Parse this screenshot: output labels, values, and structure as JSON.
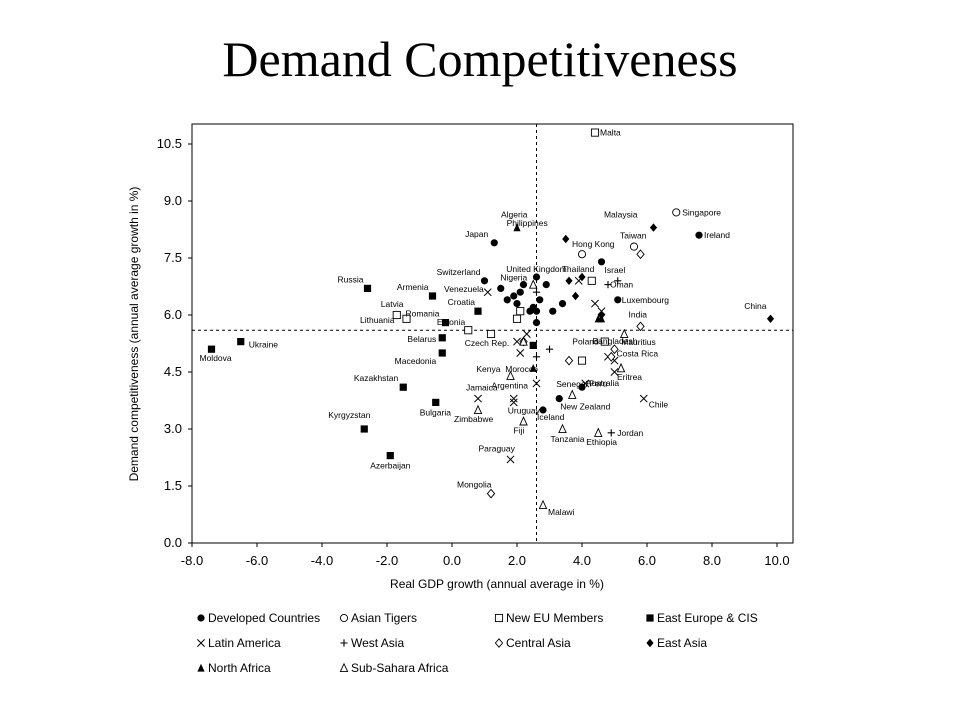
{
  "slide": {
    "title": "Demand Competitiveness"
  },
  "chart_data": {
    "type": "scatter",
    "xlabel": "Real GDP growth (annual average in %)",
    "ylabel": "Demand competitiveness (annual average growth in %)",
    "xlim": [
      -8.0,
      10.0
    ],
    "ylim": [
      0.0,
      11.0
    ],
    "x_ticks": [
      "-8.0",
      "-6.0",
      "-4.0",
      "-2.0",
      "0.0",
      "2.0",
      "4.0",
      "6.0",
      "8.0",
      "10.0"
    ],
    "y_ticks": [
      "0.0",
      "1.5",
      "3.0",
      "4.5",
      "6.0",
      "7.5",
      "9.0",
      "10.5"
    ],
    "grid": false,
    "reference_lines": {
      "x": 2.6,
      "y": 5.6
    },
    "legend_position": "bottom",
    "series": [
      {
        "name": "Developed Countries",
        "marker": "filled-circle",
        "points": [
          {
            "label": "Japan",
            "x": 1.3,
            "y": 7.9
          },
          {
            "label": "Switzerland",
            "x": 1.0,
            "y": 6.9
          },
          {
            "label": "Ireland",
            "x": 7.6,
            "y": 8.1
          },
          {
            "label": "Israel",
            "x": 4.6,
            "y": 7.4
          },
          {
            "label": "Luxembourg",
            "x": 5.1,
            "y": 6.4
          },
          {
            "label": "Australia",
            "x": 4.0,
            "y": 4.1
          },
          {
            "label": "New Zealand",
            "x": 3.3,
            "y": 3.8
          },
          {
            "label": "Iceland",
            "x": 2.8,
            "y": 3.5
          },
          {
            "label": "United Kingdom",
            "x": 2.6,
            "y": 7.0
          },
          {
            "label": "",
            "x": 1.5,
            "y": 6.7
          },
          {
            "label": "",
            "x": 1.7,
            "y": 6.4
          },
          {
            "label": "",
            "x": 1.9,
            "y": 6.5
          },
          {
            "label": "",
            "x": 2.0,
            "y": 6.3
          },
          {
            "label": "",
            "x": 2.1,
            "y": 6.6
          },
          {
            "label": "",
            "x": 2.2,
            "y": 6.8
          },
          {
            "label": "",
            "x": 2.4,
            "y": 6.1
          },
          {
            "label": "",
            "x": 2.5,
            "y": 6.2
          },
          {
            "label": "",
            "x": 2.7,
            "y": 6.4
          },
          {
            "label": "",
            "x": 2.6,
            "y": 6.1
          },
          {
            "label": "",
            "x": 2.9,
            "y": 6.8
          },
          {
            "label": "",
            "x": 3.1,
            "y": 6.1
          },
          {
            "label": "",
            "x": 2.6,
            "y": 5.8
          },
          {
            "label": "",
            "x": 3.4,
            "y": 6.3
          }
        ]
      },
      {
        "name": "Asian Tigers",
        "marker": "open-circle",
        "points": [
          {
            "label": "Singapore",
            "x": 6.9,
            "y": 8.7
          },
          {
            "label": "Hong Kong",
            "x": 4.0,
            "y": 7.6
          },
          {
            "label": "Taiwan",
            "x": 5.6,
            "y": 7.8
          }
        ]
      },
      {
        "name": "New EU Members",
        "marker": "open-square",
        "points": [
          {
            "label": "Malta",
            "x": 4.4,
            "y": 10.8
          },
          {
            "label": "Latvia",
            "x": -1.7,
            "y": 6.0
          },
          {
            "label": "Lithuania",
            "x": -1.4,
            "y": 5.9
          },
          {
            "label": "Estonia",
            "x": 0.5,
            "y": 5.6
          },
          {
            "label": "Czech Rep.",
            "x": 1.2,
            "y": 5.5
          },
          {
            "label": "Poland",
            "x": 4.7,
            "y": 5.3
          },
          {
            "label": "",
            "x": 2.0,
            "y": 5.9
          },
          {
            "label": "",
            "x": 2.1,
            "y": 6.1
          },
          {
            "label": "",
            "x": 4.0,
            "y": 4.8
          },
          {
            "label": "",
            "x": 4.3,
            "y": 6.9
          }
        ]
      },
      {
        "name": "East Europe & CIS",
        "marker": "filled-square",
        "points": [
          {
            "label": "Russia",
            "x": -2.6,
            "y": 6.7
          },
          {
            "label": "Armenia",
            "x": -0.6,
            "y": 6.5
          },
          {
            "label": "Croatia",
            "x": 0.8,
            "y": 6.1
          },
          {
            "label": "Romania",
            "x": -0.2,
            "y": 5.8
          },
          {
            "label": "Belarus",
            "x": -0.3,
            "y": 5.4
          },
          {
            "label": "Macedonia",
            "x": -0.3,
            "y": 5.0
          },
          {
            "label": "Ukraine",
            "x": -6.5,
            "y": 5.3
          },
          {
            "label": "Moldova",
            "x": -7.4,
            "y": 5.1
          },
          {
            "label": "Kazakhstan",
            "x": -1.5,
            "y": 4.1
          },
          {
            "label": "Bulgaria",
            "x": -0.5,
            "y": 3.7
          },
          {
            "label": "Kyrgyzstan",
            "x": -2.7,
            "y": 3.0
          },
          {
            "label": "Azerbaijan",
            "x": -1.9,
            "y": 2.3
          },
          {
            "label": "",
            "x": 2.5,
            "y": 5.2
          }
        ]
      },
      {
        "name": "Latin America",
        "marker": "cross",
        "points": [
          {
            "label": "Venezuela",
            "x": 1.1,
            "y": 6.6
          },
          {
            "label": "Costa Rica",
            "x": 5.0,
            "y": 4.8
          },
          {
            "label": "Chile",
            "x": 5.9,
            "y": 3.8
          },
          {
            "label": "Peru",
            "x": 4.1,
            "y": 4.2
          },
          {
            "label": "Argentina",
            "x": 1.9,
            "y": 3.8
          },
          {
            "label": "Jamaica",
            "x": 0.8,
            "y": 3.8
          },
          {
            "label": "Uruguay",
            "x": 1.9,
            "y": 3.7
          },
          {
            "label": "Paraguay",
            "x": 1.8,
            "y": 2.2
          },
          {
            "label": "",
            "x": 2.1,
            "y": 5.0
          },
          {
            "label": "",
            "x": 2.0,
            "y": 5.3
          },
          {
            "label": "",
            "x": 2.3,
            "y": 5.5
          },
          {
            "label": "",
            "x": 2.6,
            "y": 4.2
          },
          {
            "label": "",
            "x": 3.9,
            "y": 6.9
          },
          {
            "label": "",
            "x": 4.4,
            "y": 6.3
          },
          {
            "label": "",
            "x": 4.6,
            "y": 6.1
          },
          {
            "label": "",
            "x": 5.0,
            "y": 4.5
          },
          {
            "label": "",
            "x": 4.8,
            "y": 4.9
          }
        ]
      },
      {
        "name": "West Asia",
        "marker": "plus",
        "points": [
          {
            "label": "Oman",
            "x": 4.8,
            "y": 6.8
          },
          {
            "label": "Jordan",
            "x": 4.9,
            "y": 2.9
          },
          {
            "label": "",
            "x": 5.1,
            "y": 6.9
          },
          {
            "label": "",
            "x": 3.0,
            "y": 5.1
          },
          {
            "label": "",
            "x": 2.6,
            "y": 4.9
          },
          {
            "label": "",
            "x": 2.6,
            "y": 6.6
          }
        ]
      },
      {
        "name": "Central Asia",
        "marker": "open-diamond",
        "points": [
          {
            "label": "India",
            "x": 5.8,
            "y": 5.7
          },
          {
            "label": "Bangladesh",
            "x": 5.0,
            "y": 5.1
          },
          {
            "label": "Mongolia",
            "x": 1.2,
            "y": 1.3
          },
          {
            "label": "",
            "x": 5.8,
            "y": 7.6
          },
          {
            "label": "",
            "x": 3.6,
            "y": 4.8
          },
          {
            "label": "",
            "x": 4.9,
            "y": 4.9
          },
          {
            "label": "",
            "x": 2.2,
            "y": 5.3
          }
        ]
      },
      {
        "name": "East Asia",
        "marker": "filled-diamond",
        "points": [
          {
            "label": "Philippines",
            "x": 3.5,
            "y": 8.0
          },
          {
            "label": "Malaysia",
            "x": 6.2,
            "y": 8.3
          },
          {
            "label": "Thailand",
            "x": 4.0,
            "y": 7.0
          },
          {
            "label": "China",
            "x": 9.8,
            "y": 5.9
          },
          {
            "label": "",
            "x": 3.6,
            "y": 6.9
          },
          {
            "label": "",
            "x": 3.8,
            "y": 6.5
          },
          {
            "label": "",
            "x": 4.6,
            "y": 6.0
          }
        ]
      },
      {
        "name": "North Africa",
        "marker": "filled-triangle",
        "points": [
          {
            "label": "Algeria",
            "x": 2.0,
            "y": 8.3
          },
          {
            "label": "Morocco",
            "x": 2.5,
            "y": 4.6
          },
          {
            "label": "",
            "x": 4.5,
            "y": 5.9
          },
          {
            "label": "",
            "x": 4.6,
            "y": 5.9
          }
        ]
      },
      {
        "name": "Sub-Sahara Africa",
        "marker": "open-triangle",
        "points": [
          {
            "label": "Nigeria",
            "x": 2.5,
            "y": 6.8
          },
          {
            "label": "Mauritius",
            "x": 5.3,
            "y": 5.5
          },
          {
            "label": "Eritrea",
            "x": 5.2,
            "y": 4.6
          },
          {
            "label": "Kenya",
            "x": 1.8,
            "y": 4.4
          },
          {
            "label": "Senegal",
            "x": 3.7,
            "y": 3.9
          },
          {
            "label": "Zimbabwe",
            "x": 0.8,
            "y": 3.5
          },
          {
            "label": "Fiji",
            "x": 2.2,
            "y": 3.2
          },
          {
            "label": "Tanzania",
            "x": 3.4,
            "y": 3.0
          },
          {
            "label": "Ethiopia",
            "x": 4.5,
            "y": 2.9
          },
          {
            "label": "Malawi",
            "x": 2.8,
            "y": 1.0
          },
          {
            "label": "",
            "x": 2.2,
            "y": 5.3
          }
        ]
      }
    ]
  }
}
